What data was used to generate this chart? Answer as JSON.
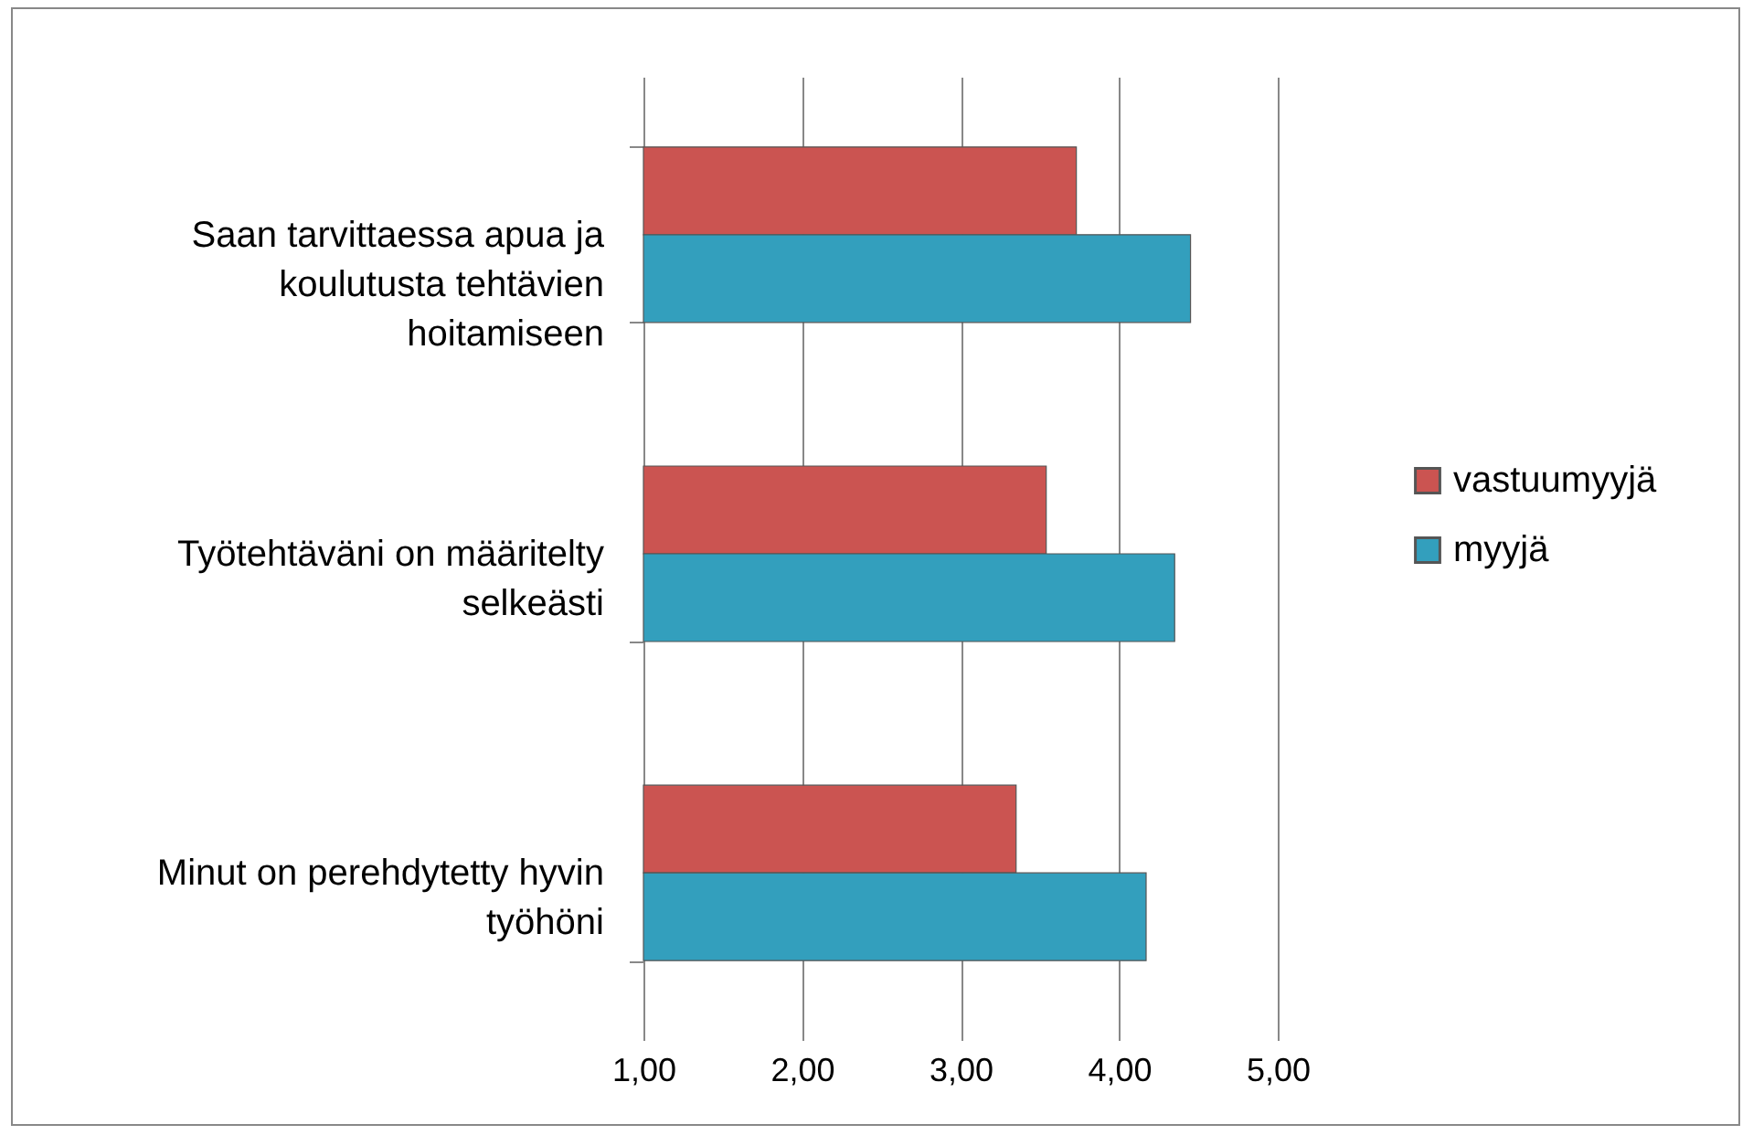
{
  "chart_data": {
    "type": "bar",
    "orientation": "horizontal",
    "categories": [
      "Saan tarvittaessa apua ja\nkoulutusta tehtävien\nhoitamiseen",
      "Työtehtäväni on määritelty\nselkeästi",
      "Minut on perehdytetty hyvin\ntyöhöni"
    ],
    "series": [
      {
        "name": "vastuumyyjä",
        "color": "#cb5451",
        "values": [
          3.73,
          3.54,
          3.35
        ]
      },
      {
        "name": "myyjä",
        "color": "#339fbd",
        "values": [
          4.45,
          4.35,
          4.17
        ]
      }
    ],
    "xlim": [
      1,
      5
    ],
    "xticks": [
      {
        "value": 1,
        "label": "1,00"
      },
      {
        "value": 2,
        "label": "2,00"
      },
      {
        "value": 3,
        "label": "3,00"
      },
      {
        "value": 4,
        "label": "4,00"
      },
      {
        "value": 5,
        "label": "5,00"
      }
    ],
    "grid": "x",
    "legend": "right"
  }
}
